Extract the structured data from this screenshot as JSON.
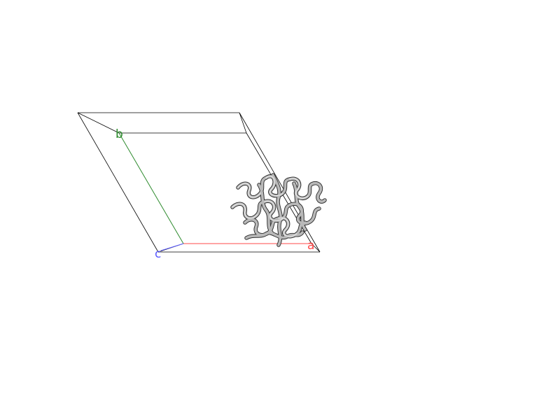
{
  "axes": {
    "a": {
      "label": "a",
      "color": "#ff4b4b"
    },
    "b": {
      "label": "b",
      "color": "#2e8b2e"
    },
    "c": {
      "label": "c",
      "color": "#5a5aff"
    }
  },
  "cell_edge_color": "#000000",
  "molecule": {
    "representation": "cartoon",
    "color": "#b9b9b9"
  }
}
